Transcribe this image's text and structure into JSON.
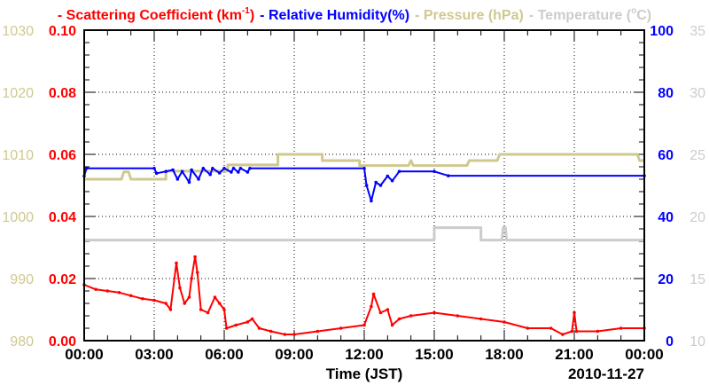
{
  "chart_data": {
    "type": "line",
    "legend": [
      {
        "text": "Scattering Coefficient (km",
        "sup": "-1",
        "close": ")",
        "color": "#ff0000"
      },
      {
        "text": "Relative Humidity(%)",
        "color": "#0000ff"
      },
      {
        "text": "Pressure (hPa)",
        "color": "#cfc98f"
      },
      {
        "text": "Temperature (",
        "sup": "o",
        "close": "C)",
        "color": "#cccccc"
      }
    ],
    "legend_dash": "-",
    "xlabel": "Time (JST)",
    "date_label": "2010-11-27",
    "xlim": [
      0,
      24
    ],
    "xticks": [
      "00:00",
      "03:00",
      "06:00",
      "09:00",
      "12:00",
      "15:00",
      "18:00",
      "21:00",
      "00:00"
    ],
    "axes": {
      "scattering": {
        "ylim": [
          0,
          0.1
        ],
        "ticks": [
          "0.00",
          "0.02",
          "0.04",
          "0.06",
          "0.08",
          "0.10"
        ],
        "color": "#ff0000"
      },
      "pressure": {
        "ylim": [
          980,
          1030
        ],
        "ticks": [
          "980",
          "990",
          "1000",
          "1010",
          "1020",
          "1030"
        ],
        "color": "#cfc98f"
      },
      "humidity": {
        "ylim": [
          0,
          100
        ],
        "ticks": [
          "0",
          "20",
          "40",
          "60",
          "80",
          "100"
        ],
        "color": "#0000ff"
      },
      "temperature": {
        "ylim": [
          10,
          35
        ],
        "ticks": [
          "10",
          "15",
          "20",
          "25",
          "30",
          "35"
        ],
        "color": "#cccccc"
      }
    },
    "series": [
      {
        "name": "Temperature",
        "axis": "temperature",
        "markers": false,
        "x": [
          0,
          15,
          15,
          17,
          17,
          17.9,
          17.95,
          18.05,
          18.1,
          24
        ],
        "y": [
          18.1,
          18.1,
          19.1,
          19.1,
          18.1,
          18.1,
          19.1,
          19.1,
          18.1,
          18.1
        ]
      },
      {
        "name": "Pressure",
        "axis": "pressure",
        "markers": false,
        "x": [
          0,
          1.6,
          1.7,
          1.9,
          2.0,
          3.5,
          3.5,
          6.15,
          6.15,
          8.3,
          8.3,
          10.2,
          10.2,
          11.8,
          11.8,
          13.9,
          14.0,
          14.1,
          14.2,
          16.4,
          16.5,
          17.7,
          17.8,
          23.7,
          23.8,
          24
        ],
        "y": [
          1006,
          1006,
          1007.2,
          1007.2,
          1006,
          1006,
          1007.3,
          1007.3,
          1008.3,
          1008.3,
          1010,
          1010,
          1009,
          1009,
          1008.2,
          1008.2,
          1009,
          1008.2,
          1008.2,
          1008.2,
          1009,
          1009,
          1010,
          1010,
          1009,
          1009
        ]
      },
      {
        "name": "Relative Humidity",
        "axis": "humidity",
        "markers": true,
        "x": [
          0,
          0.1,
          3.0,
          3.1,
          3.5,
          3.8,
          4.0,
          4.2,
          4.5,
          4.6,
          4.9,
          5.1,
          5.4,
          5.5,
          5.8,
          6.0,
          6.3,
          6.4,
          6.6,
          6.7,
          7.0,
          7.1,
          12.0,
          12.1,
          12.3,
          12.5,
          12.7,
          13.0,
          13.2,
          13.5,
          15.0,
          15.6,
          24
        ],
        "y": [
          53,
          55.5,
          55.5,
          53.9,
          54.5,
          55,
          52,
          54.5,
          51,
          55,
          52,
          55.5,
          53.5,
          55.5,
          54,
          55.5,
          54.3,
          55.5,
          54.3,
          55.5,
          54.3,
          55.5,
          55.5,
          50,
          45,
          51,
          50,
          53,
          51.5,
          54.5,
          54.5,
          53.1,
          53.1
        ]
      },
      {
        "name": "Scattering Coefficient",
        "axis": "scattering",
        "markers": true,
        "x": [
          0,
          0.5,
          1,
          1.5,
          2,
          2.5,
          3,
          3.5,
          3.7,
          3.95,
          4.1,
          4.3,
          4.5,
          4.6,
          4.75,
          4.85,
          5.0,
          5.3,
          5.6,
          5.8,
          6.0,
          6.1,
          6.5,
          7.0,
          7.2,
          7.5,
          8.0,
          8.6,
          9.0,
          10,
          11,
          12,
          12.3,
          12.4,
          12.7,
          13.0,
          13.2,
          13.5,
          14,
          15,
          16,
          17,
          18,
          19,
          20,
          20.5,
          20.9,
          21.0,
          21.1,
          22,
          23,
          24
        ],
        "y": [
          0.018,
          0.0165,
          0.016,
          0.0155,
          0.0145,
          0.0135,
          0.013,
          0.012,
          0.01,
          0.025,
          0.017,
          0.012,
          0.014,
          0.02,
          0.027,
          0.022,
          0.01,
          0.009,
          0.014,
          0.012,
          0.01,
          0.004,
          0.005,
          0.006,
          0.007,
          0.004,
          0.003,
          0.002,
          0.002,
          0.003,
          0.004,
          0.005,
          0.011,
          0.015,
          0.009,
          0.01,
          0.005,
          0.007,
          0.008,
          0.009,
          0.008,
          0.007,
          0.006,
          0.004,
          0.004,
          0.002,
          0.003,
          0.009,
          0.003,
          0.003,
          0.004,
          0.004
        ]
      }
    ]
  }
}
